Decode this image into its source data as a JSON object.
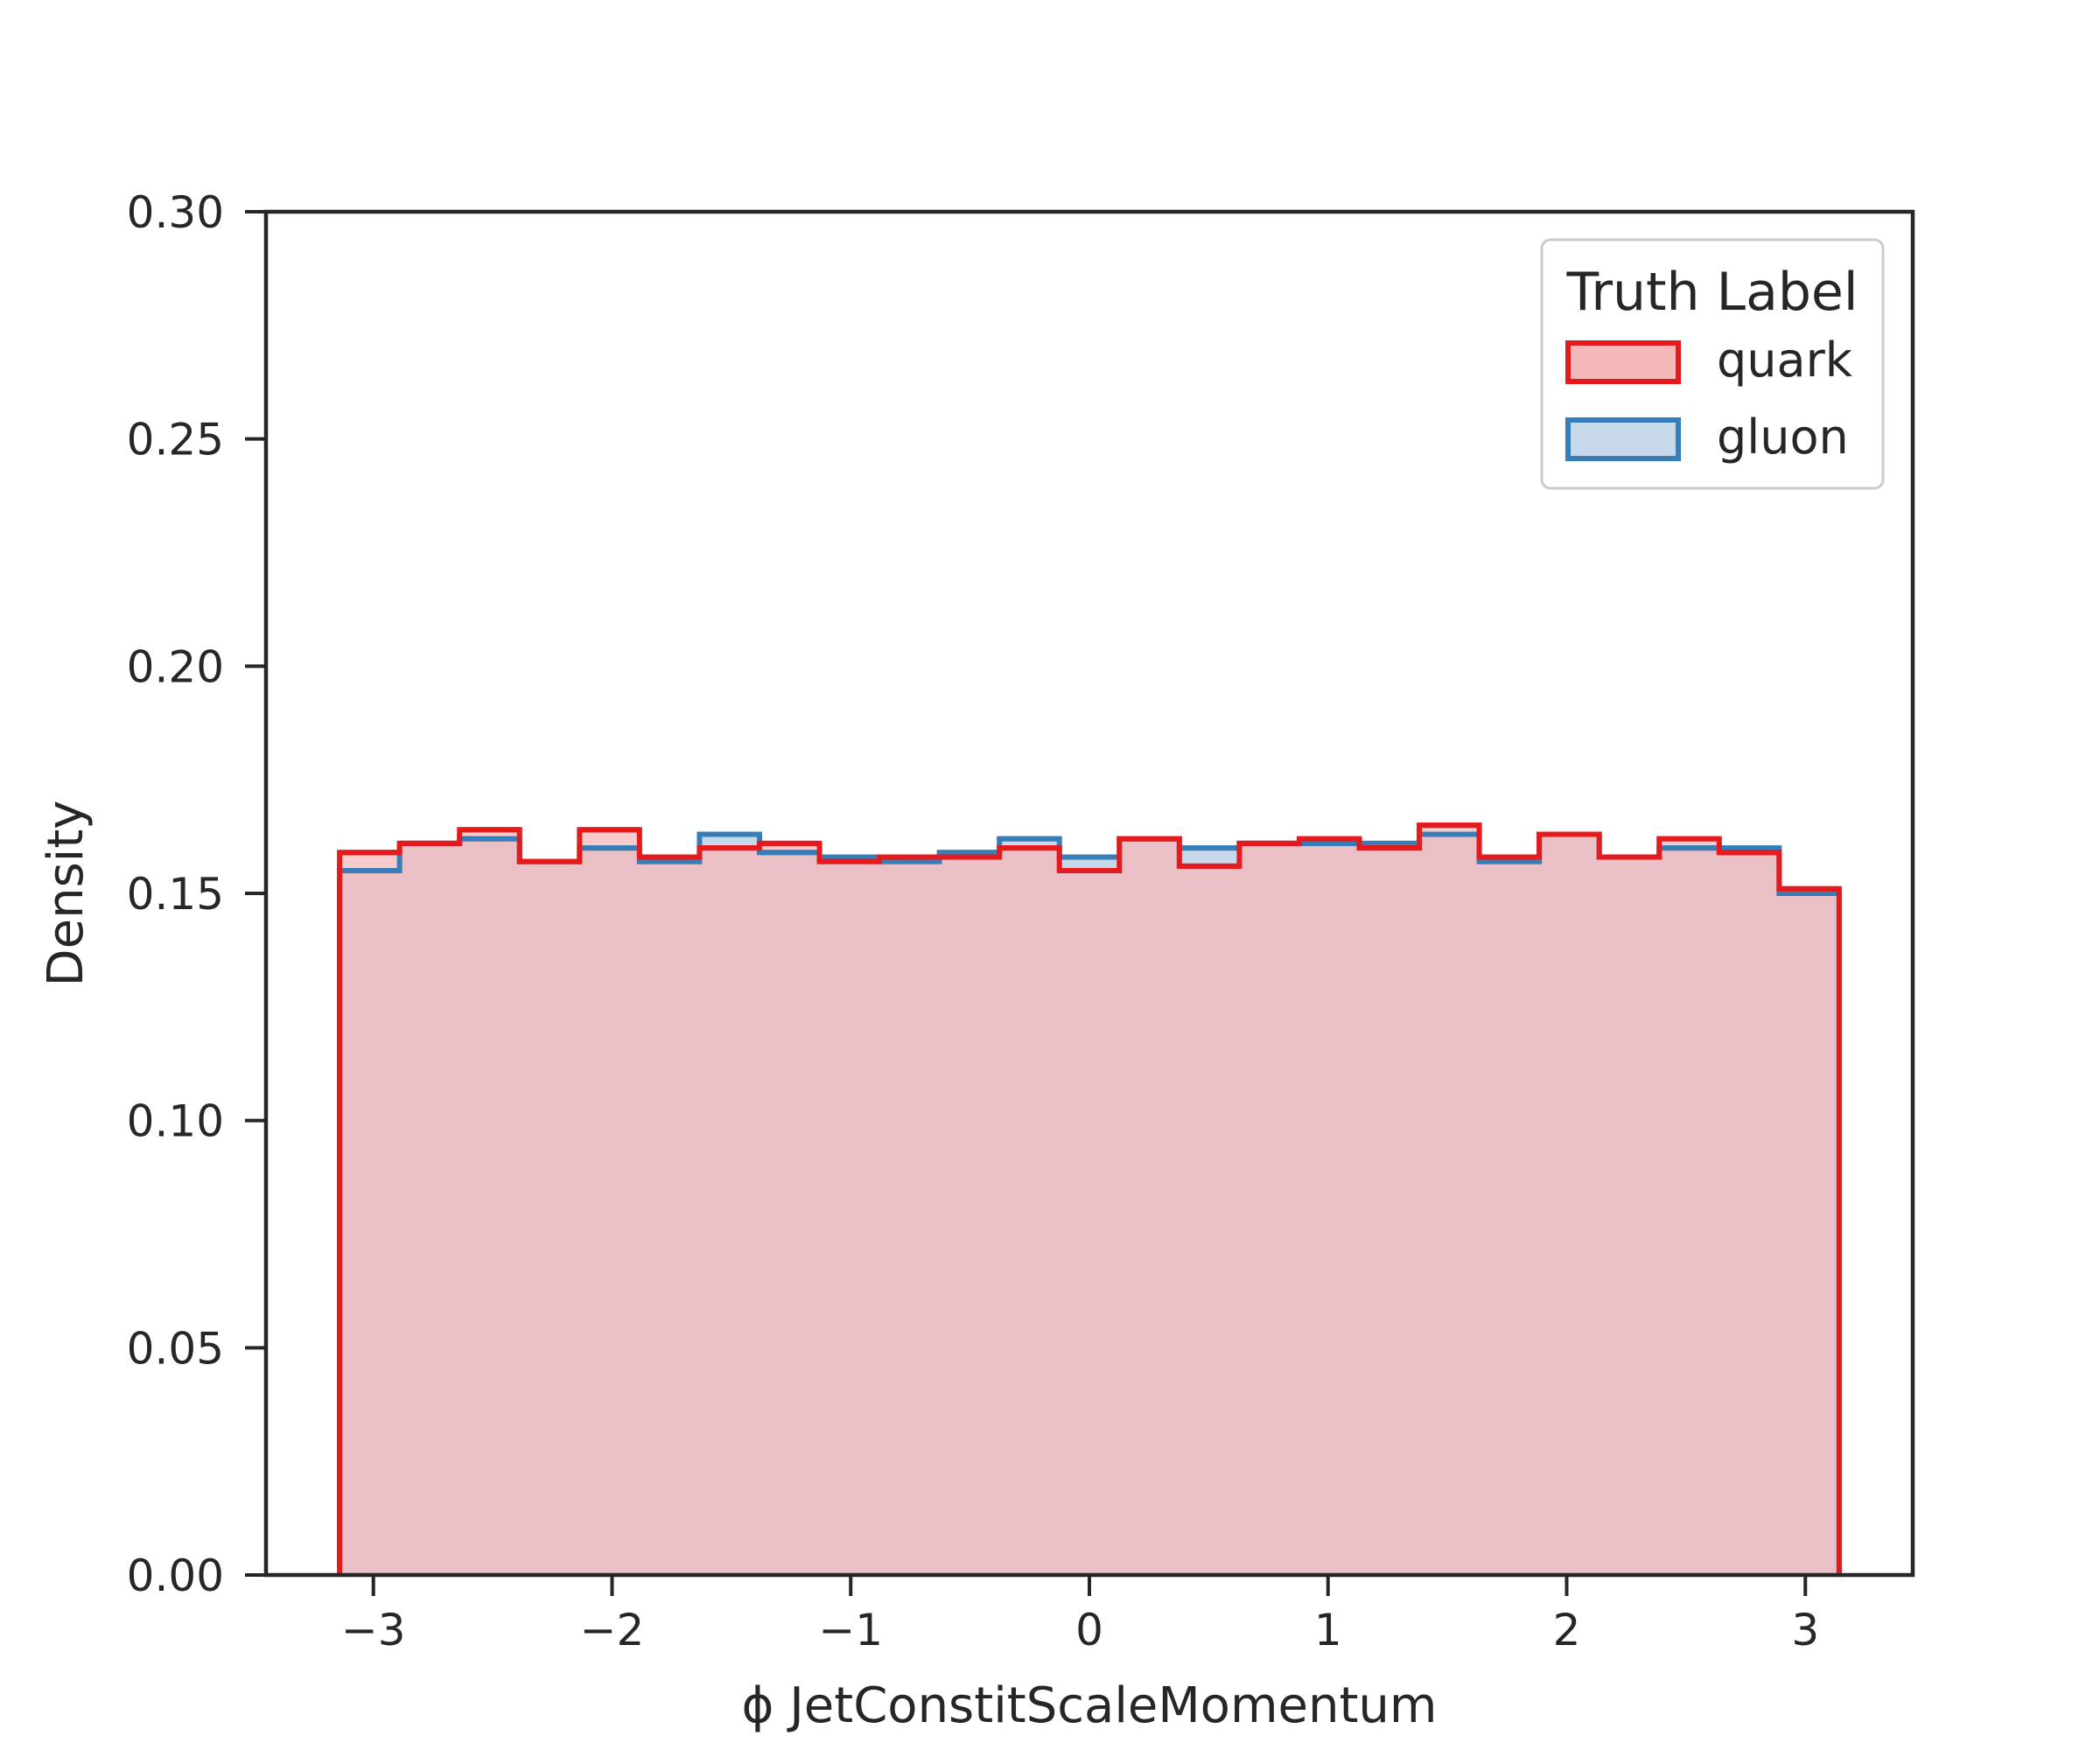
{
  "chart_data": {
    "type": "histogram",
    "xlabel": "ϕ JetConstitScaleMomentum",
    "ylabel": "Density",
    "xlim": [
      -3.45,
      3.45
    ],
    "ylim": [
      0,
      0.3
    ],
    "xticks": [
      -3,
      -2,
      -1,
      0,
      1,
      2,
      3
    ],
    "xtick_labels": [
      "−3",
      "−2",
      "−1",
      "0",
      "1",
      "2",
      "3"
    ],
    "yticks": [
      0,
      0.05,
      0.1,
      0.15,
      0.2,
      0.25,
      0.3
    ],
    "ytick_labels": [
      "0.00",
      "0.05",
      "0.10",
      "0.15",
      "0.20",
      "0.25",
      "0.30"
    ],
    "bin_edges": [
      -3.1416,
      -2.8903,
      -2.639,
      -2.3876,
      -2.1363,
      -1.885,
      -1.6336,
      -1.3823,
      -1.131,
      -0.8796,
      -0.6283,
      -0.377,
      -0.1257,
      0.1257,
      0.377,
      0.6283,
      0.8796,
      1.131,
      1.3823,
      1.6336,
      1.885,
      2.1363,
      2.3876,
      2.639,
      2.8903,
      3.1416
    ],
    "grid": false,
    "legend": {
      "title": "Truth Label",
      "position": "top-right"
    },
    "series": [
      {
        "name": "gluon",
        "color": "#377eb8",
        "fill": "#c6d8ea",
        "values": [
          0.155,
          0.161,
          0.162,
          0.157,
          0.16,
          0.157,
          0.163,
          0.159,
          0.158,
          0.157,
          0.159,
          0.162,
          0.158,
          0.162,
          0.16,
          0.161,
          0.161,
          0.161,
          0.163,
          0.157,
          0.163,
          0.158,
          0.16,
          0.16,
          0.15
        ]
      },
      {
        "name": "quark",
        "color": "#e41a1c",
        "fill": "#f5b8b9",
        "values": [
          0.159,
          0.161,
          0.164,
          0.157,
          0.164,
          0.158,
          0.16,
          0.161,
          0.157,
          0.158,
          0.158,
          0.16,
          0.155,
          0.162,
          0.156,
          0.161,
          0.162,
          0.16,
          0.165,
          0.158,
          0.163,
          0.158,
          0.162,
          0.159,
          0.151
        ]
      }
    ]
  }
}
